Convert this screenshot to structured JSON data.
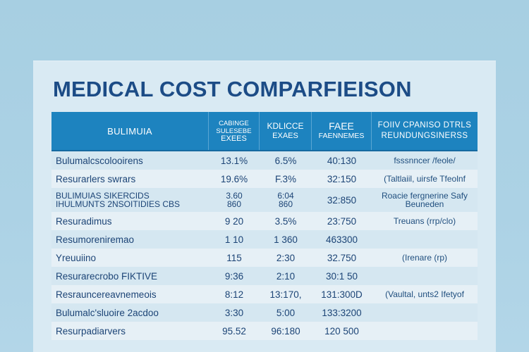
{
  "page": {
    "title": "MEDICAL COST COMPARFIEISON"
  },
  "table": {
    "header": {
      "col1": "BULIMUIA",
      "col2_line1": "CABINGE",
      "col2_line2": "SULESEBE",
      "col2_line3": "EXEES",
      "col3_line1": "KDLICCE",
      "col3_line2": "EXAES",
      "col4_line1": "FAEE",
      "col4_line2": "FAENNEMES",
      "col5_line1": "FOIIV CPANISO DTRLS",
      "col5_line2": "REUNDUNGSINERSS"
    },
    "rows": [
      {
        "c1": "Bulumalcscolooirens",
        "c2": "13.1%",
        "c3": "6.5%",
        "c4": "40:130",
        "c5": "fsssnncer /feole/"
      },
      {
        "c1": "Resurarlers swrars",
        "c2": "19.6%",
        "c3": "F.3%",
        "c4": "32:150",
        "c5": "(Taltlaiil, uirsfe Tfeolnf"
      },
      {
        "c1_line1": "BULIMUIAS SIKERCIDS",
        "c1_line2": "IHULMUNTS 2NSOITIDIES CBS",
        "c2_line1": "3.60",
        "c2_line2": "860",
        "c3_line1": "6:04",
        "c3_line2": "860",
        "c4": "32:850",
        "c5_line1": "Roacie fergnerine Safy",
        "c5_line2": "Beuneden"
      },
      {
        "c1": "Resuradimus",
        "c2": "9 20",
        "c3": "3.5%",
        "c4": "23:750",
        "c5": "Treuans (rrp/clo)"
      },
      {
        "c1": "Resumoreniremao",
        "c2": "1 10",
        "c3": "1 360",
        "c4": "463300",
        "c5": ""
      },
      {
        "c1": "Yreuuiino",
        "c2": "115",
        "c3": "2:30",
        "c4": "32.750",
        "c5": "(Irenare (rp)"
      },
      {
        "c1": "Resurarecrobo FIKTIVE",
        "c2": "9:36",
        "c3": "2:10",
        "c4": "30:1 50",
        "c5": ""
      },
      {
        "c1": "Resrauncereavnemeois",
        "c2": "8:12",
        "c3": "13:170,",
        "c4": "131:300D",
        "c5": "(Vaultal, unts2 Ifetyof"
      },
      {
        "c1": "Bulumalc'sluoire 2acdoo",
        "c2": "3:30",
        "c3": "5:00",
        "c4": "133:3200",
        "c5": ""
      },
      {
        "c1": "Resurpadiarvers",
        "c2": "95.52",
        "c3": "96:180",
        "c4": "120 500",
        "c5": ""
      }
    ]
  }
}
